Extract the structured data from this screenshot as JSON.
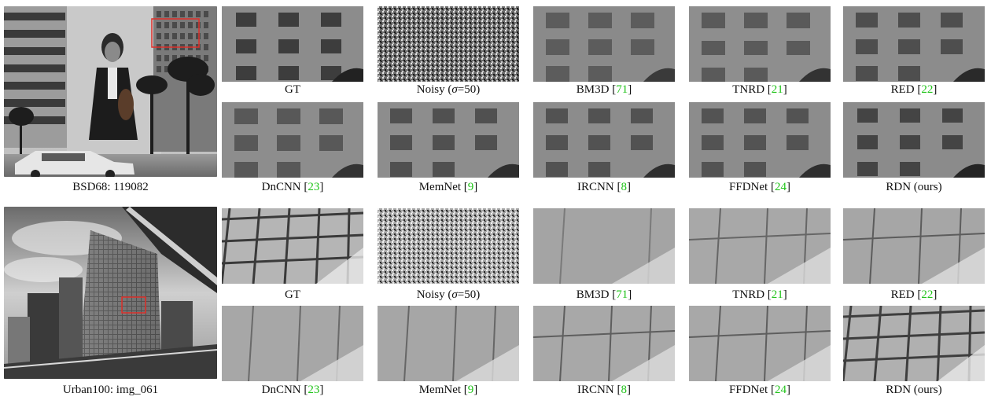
{
  "panels": [
    {
      "id": "bsd68",
      "caption": "BSD68: 119082",
      "method_labels": [
        {
          "text": "GT",
          "ref": ""
        },
        {
          "text": "Noisy (",
          "sigma": "σ",
          "tail": "=50)",
          "ref": ""
        },
        {
          "text": "BM3D [",
          "ref": "71",
          "close": "]"
        },
        {
          "text": "TNRD [",
          "ref": "21",
          "close": "]"
        },
        {
          "text": "RED [",
          "ref": "22",
          "close": "]"
        },
        {
          "text": "DnCNN [",
          "ref": "23",
          "close": "]"
        },
        {
          "text": "MemNet [",
          "ref": "9",
          "close": "]"
        },
        {
          "text": "IRCNN [",
          "ref": "8",
          "close": "]"
        },
        {
          "text": "FFDNet [",
          "ref": "24",
          "close": "]"
        },
        {
          "text": "RDN (ours)",
          "ref": ""
        }
      ]
    },
    {
      "id": "urban100",
      "caption": "Urban100: img_061",
      "method_labels": [
        {
          "text": "GT",
          "ref": ""
        },
        {
          "text": "Noisy (",
          "sigma": "σ",
          "tail": "=50)",
          "ref": ""
        },
        {
          "text": "BM3D [",
          "ref": "71",
          "close": "]"
        },
        {
          "text": "TNRD [",
          "ref": "21",
          "close": "]"
        },
        {
          "text": "RED [",
          "ref": "22",
          "close": "]"
        },
        {
          "text": "DnCNN [",
          "ref": "23",
          "close": "]"
        },
        {
          "text": "MemNet [",
          "ref": "9",
          "close": "]"
        },
        {
          "text": "IRCNN [",
          "ref": "8",
          "close": "]"
        },
        {
          "text": "FFDNet [",
          "ref": "24",
          "close": "]"
        },
        {
          "text": "RDN (ours)",
          "ref": ""
        }
      ]
    }
  ],
  "colors": {
    "reference_link": "#22c41b",
    "highlight_box": "#e0302a"
  }
}
